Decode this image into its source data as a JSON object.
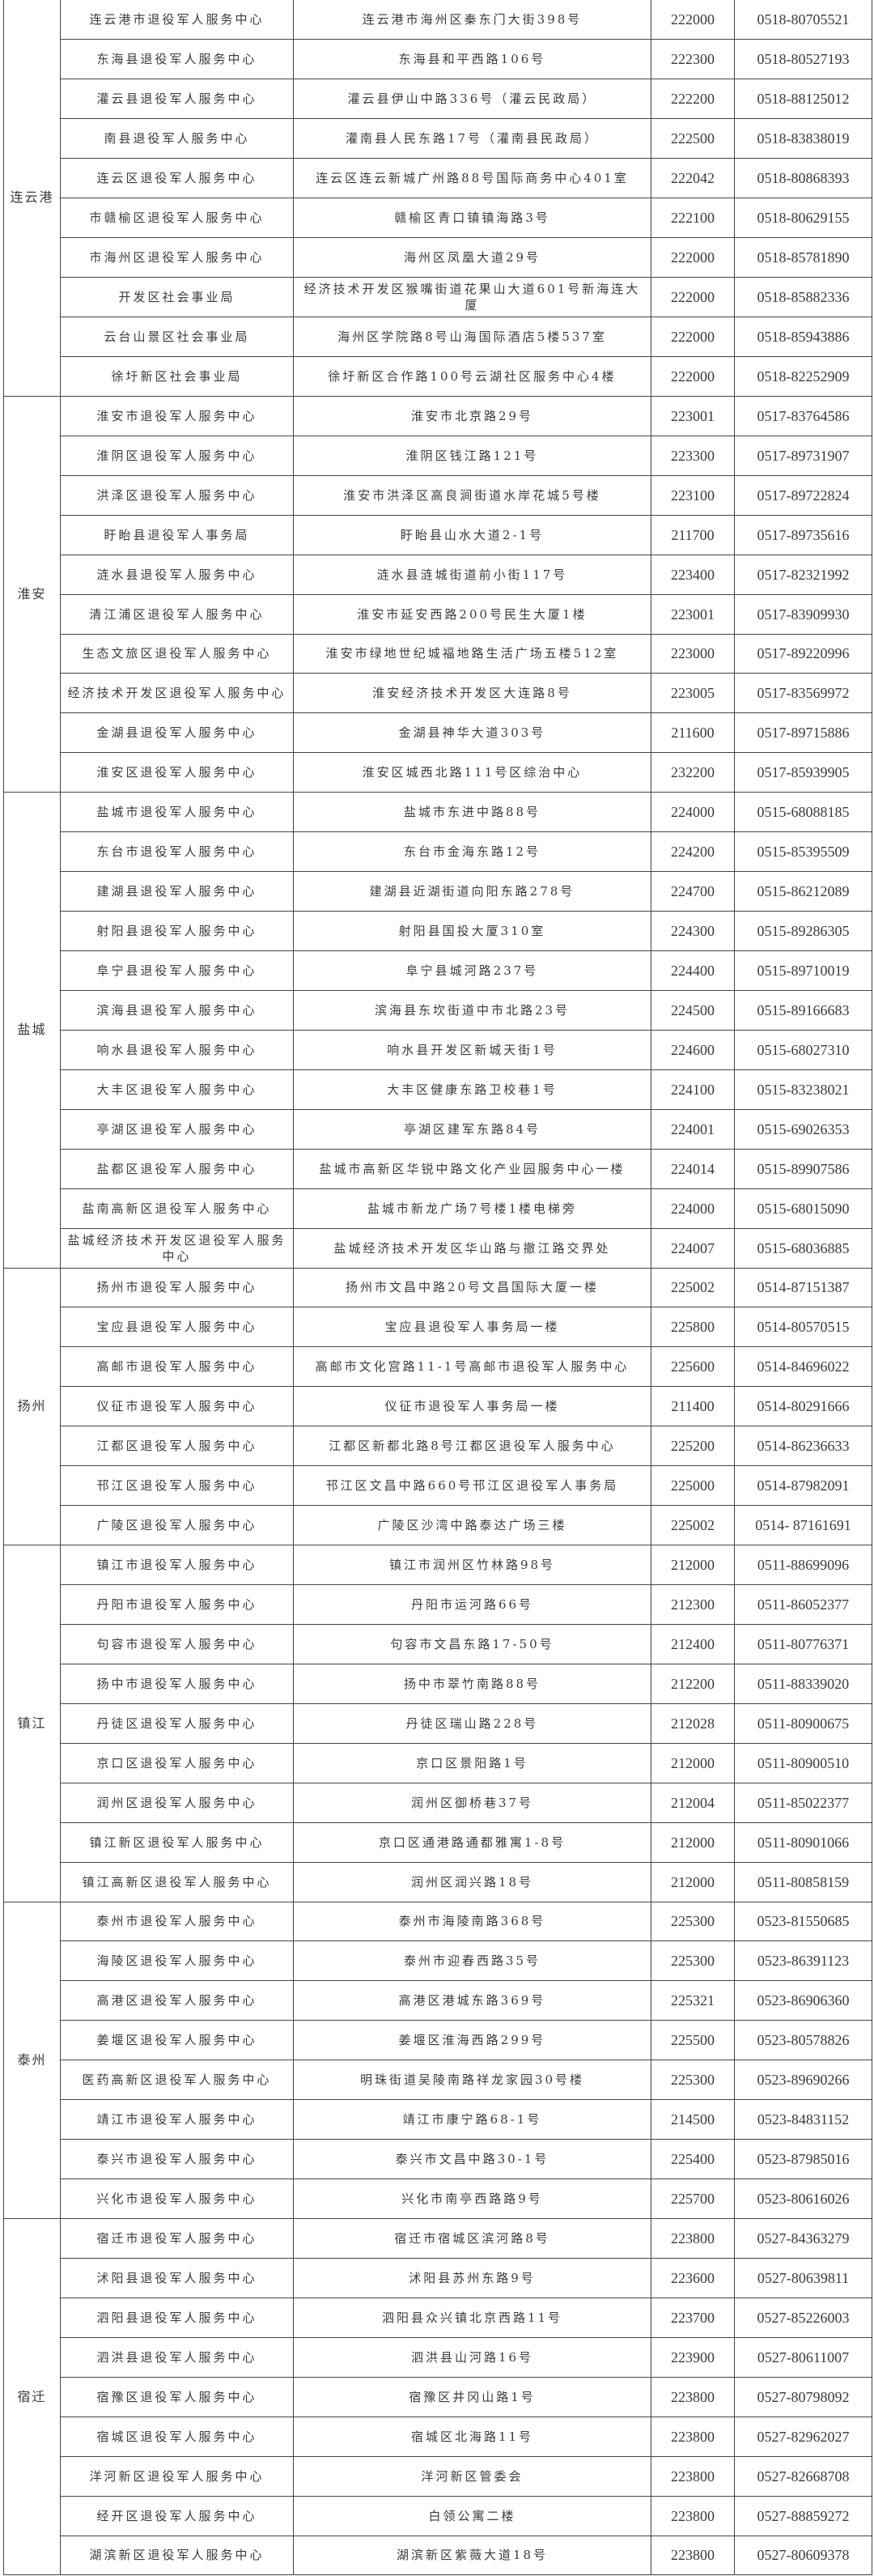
{
  "groups": [
    {
      "city": "连云港",
      "rows": [
        [
          "连云港市退役军人服务中心",
          "连云港市海州区秦东门大街398号",
          "222000",
          "0518-80705521"
        ],
        [
          "东海县退役军人服务中心",
          "东海县和平西路106号",
          "222300",
          "0518-80527193"
        ],
        [
          "灌云县退役军人服务中心",
          "灌云县伊山中路336号（灌云民政局）",
          "222200",
          "0518-88125012"
        ],
        [
          "南县退役军人服务中心",
          "灌南县人民东路17号（灌南县民政局）",
          "222500",
          "0518-83838019"
        ],
        [
          "连云区退役军人服务中心",
          "连云区连云新城广州路88号国际商务中心401室",
          "222042",
          "0518-80868393"
        ],
        [
          "市赣榆区退役军人服务中心",
          "赣榆区青口镇镇海路3号",
          "222100",
          "0518-80629155"
        ],
        [
          "市海州区退役军人服务中心",
          "海州区凤凰大道29号",
          "222000",
          "0518-85781890"
        ],
        [
          "开发区社会事业局",
          "经济技术开发区猴嘴街道花果山大道601号新海连大厦",
          "222000",
          "0518-85882336"
        ],
        [
          "云台山景区社会事业局",
          "海州区学院路8号山海国际酒店5楼537室",
          "222000",
          "0518-85943886"
        ],
        [
          "徐圩新区社会事业局",
          "徐圩新区合作路100号云湖社区服务中心4楼",
          "222000",
          "0518-82252909"
        ]
      ]
    },
    {
      "city": "淮安",
      "rows": [
        [
          "淮安市退役军人服务中心",
          "淮安市北京路29号",
          "223001",
          "0517-83764586"
        ],
        [
          "淮阴区退役军人服务中心",
          "淮阴区钱江路121号",
          "223300",
          "0517-89731907"
        ],
        [
          "洪泽区退役军人服务中心",
          "淮安市洪泽区高良涧街道水岸花城5号楼",
          "223100",
          "0517-89722824"
        ],
        [
          "盱眙县退役军人事务局",
          "盱眙县山水大道2-1号",
          "211700",
          "0517-89735616"
        ],
        [
          "涟水县退役军人服务中心",
          "涟水县涟城街道前小街117号",
          "223400",
          "0517-82321992"
        ],
        [
          "清江浦区退役军人服务中心",
          "淮安市延安西路200号民生大厦1楼",
          "223001",
          "0517-83909930"
        ],
        [
          "生态文旅区退役军人服务中心",
          "淮安市绿地世纪城福地路生活广场五楼512室",
          "223000",
          "0517-89220996"
        ],
        [
          "经济技术开发区退役军人服务中心",
          "淮安经济技术开发区大连路8号",
          "223005",
          "0517-83569972"
        ],
        [
          "金湖县退役军人服务中心",
          "金湖县神华大道303号",
          "211600",
          "0517-89715886"
        ],
        [
          "淮安区退役军人服务中心",
          "淮安区城西北路111号区综治中心",
          "232200",
          "0517-85939905"
        ]
      ]
    },
    {
      "city": "盐城",
      "rows": [
        [
          "盐城市退役军人服务中心",
          "盐城市东进中路88号",
          "224000",
          "0515-68088185"
        ],
        [
          "东台市退役军人服务中心",
          "东台市金海东路12号",
          "224200",
          "0515-85395509"
        ],
        [
          "建湖县退役军人服务中心",
          "建湖县近湖街道向阳东路278号",
          "224700",
          "0515-86212089"
        ],
        [
          "射阳县退役军人服务中心",
          "射阳县国投大厦310室",
          "224300",
          "0515-89286305"
        ],
        [
          "阜宁县退役军人服务中心",
          "阜宁县城河路237号",
          "224400",
          "0515-89710019"
        ],
        [
          "滨海县退役军人服务中心",
          "滨海县东坎街道中市北路23号",
          "224500",
          "0515-89166683"
        ],
        [
          "响水县退役军人服务中心",
          "响水县开发区新城天街1号",
          "224600",
          "0515-68027310"
        ],
        [
          "大丰区退役军人服务中心",
          "大丰区健康东路卫校巷1号",
          "224100",
          "0515-83238021"
        ],
        [
          "亭湖区退役军人服务中心",
          "亭湖区建军东路84号",
          "224001",
          "0515-69026353"
        ],
        [
          "盐都区退役军人服务中心",
          "盐城市高新区华锐中路文化产业园服务中心一楼",
          "224014",
          "0515-89907586"
        ],
        [
          "盐南高新区退役军人服务中心",
          "盐城市新龙广场7号楼1楼电梯旁",
          "224000",
          "0515-68015090"
        ],
        [
          "盐城经济技术开发区退役军人服务中心",
          "盐城经济技术开发区华山路与撤江路交界处",
          "224007",
          "0515-68036885"
        ]
      ]
    },
    {
      "city": "扬州",
      "rows": [
        [
          "扬州市退役军人服务中心",
          "扬州市文昌中路20号文昌国际大厦一楼",
          "225002",
          "0514-87151387"
        ],
        [
          "宝应县退役军人服务中心",
          "宝应县退役军人事务局一楼",
          "225800",
          "0514-80570515"
        ],
        [
          "高邮市退役军人服务中心",
          "高邮市文化宫路11-1号高邮市退役军人服务中心",
          "225600",
          "0514-84696022"
        ],
        [
          "仪征市退役军人服务中心",
          "仪征市退役军人事务局一楼",
          "211400",
          "0514-80291666"
        ],
        [
          "江都区退役军人服务中心",
          "江都区新都北路8号江都区退役军人服务中心",
          "225200",
          "0514-86236633"
        ],
        [
          "邗江区退役军人服务中心",
          "邗江区文昌中路660号邗江区退役军人事务局",
          "225000",
          "0514-87982091"
        ],
        [
          "广陵区退役军人服务中心",
          "广陵区沙湾中路泰达广场三楼",
          "225002",
          "0514- 87161691"
        ]
      ]
    },
    {
      "city": "镇江",
      "rows": [
        [
          "镇江市退役军人服务中心",
          "镇江市润州区竹林路98号",
          "212000",
          "0511-88699096"
        ],
        [
          "丹阳市退役军人服务中心",
          "丹阳市运河路66号",
          "212300",
          "0511-86052377"
        ],
        [
          "句容市退役军人服务中心",
          "句容市文昌东路17-50号",
          "212400",
          "0511-80776371"
        ],
        [
          "扬中市退役军人服务中心",
          "扬中市翠竹南路88号",
          "212200",
          "0511-88339020"
        ],
        [
          "丹徒区退役军人服务中心",
          "丹徒区瑞山路228号",
          "212028",
          "0511-80900675"
        ],
        [
          "京口区退役军人服务中心",
          "京口区景阳路1号",
          "212000",
          "0511-80900510"
        ],
        [
          "润州区退役军人服务中心",
          "润州区御桥巷37号",
          "212004",
          "0511-85022377"
        ],
        [
          "镇江新区退役军人服务中心",
          "京口区通港路通都雅寓1-8号",
          "212000",
          "0511-80901066"
        ],
        [
          "镇江高新区退役军人服务中心",
          "润州区润兴路18号",
          "212000",
          "0511-80858159"
        ]
      ]
    },
    {
      "city": "泰州",
      "rows": [
        [
          "泰州市退役军人服务中心",
          "泰州市海陵南路368号",
          "225300",
          "0523-81550685"
        ],
        [
          "海陵区退役军人服务中心",
          "泰州市迎春西路35号",
          "225300",
          "0523-86391123"
        ],
        [
          "高港区退役军人服务中心",
          "高港区港城东路369号",
          "225321",
          "0523-86906360"
        ],
        [
          "姜堰区退役军人服务中心",
          "姜堰区淮海西路299号",
          "225500",
          "0523-80578826"
        ],
        [
          "医药高新区退役军人服务中心",
          "明珠街道吴陵南路祥龙家园30号楼",
          "225300",
          "0523-89690266"
        ],
        [
          "靖江市退役军人服务中心",
          "靖江市康宁路68-1号",
          "214500",
          "0523-84831152"
        ],
        [
          "泰兴市退役军人服务中心",
          "泰兴市文昌中路30-1号",
          "225400",
          "0523-87985016"
        ],
        [
          "兴化市退役军人服务中心",
          "兴化市南亭西路路9号",
          "225700",
          "0523-80616026"
        ]
      ]
    },
    {
      "city": "宿迁",
      "rows": [
        [
          "宿迁市退役军人服务中心",
          "宿迁市宿城区滨河路8号",
          "223800",
          "0527-84363279"
        ],
        [
          "沭阳县退役军人服务中心",
          "沭阳县苏州东路9号",
          "223600",
          "0527-80639811"
        ],
        [
          "泗阳县退役军人服务中心",
          "泗阳县众兴镇北京西路11号",
          "223700",
          "0527-85226003"
        ],
        [
          "泗洪县退役军人服务中心",
          "泗洪县山河路16号",
          "223900",
          "0527-80611007"
        ],
        [
          "宿豫区退役军人服务中心",
          "宿豫区井冈山路1号",
          "223800",
          "0527-80798092"
        ],
        [
          "宿城区退役军人服务中心",
          "宿城区北海路11号",
          "223800",
          "0527-82962027"
        ],
        [
          "洋河新区退役军人服务中心",
          "洋河新区管委会",
          "223800",
          "0527-82668708"
        ],
        [
          "经开区退役军人服务中心",
          "白领公寓二楼",
          "223800",
          "0527-88859272"
        ],
        [
          "湖滨新区退役军人服务中心",
          "湖滨新区紫薇大道18号",
          "223800",
          "0527-80609378"
        ]
      ]
    }
  ]
}
